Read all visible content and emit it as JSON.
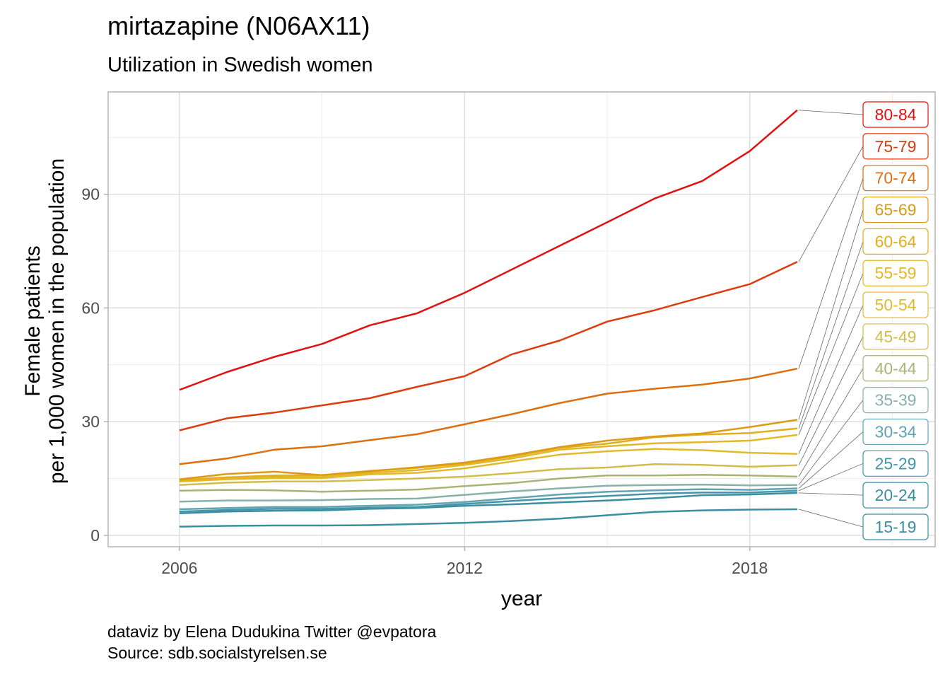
{
  "chart_data": {
    "type": "line",
    "title": "mirtazapine (N06AX11)",
    "subtitle": "Utilization in Swedish women",
    "xlabel": "year",
    "ylabel": [
      "Female patients",
      "per 1,000 women in the population"
    ],
    "caption": [
      "dataviz by Elena Dudukina Twitter @evpatora",
      "Source: sdb.socialstyrelsen.se"
    ],
    "xlim": [
      2004.5,
      2021.9
    ],
    "ylim": [
      -3,
      117
    ],
    "x_ticks": [
      2006,
      2012,
      2018
    ],
    "y_ticks": [
      0,
      30,
      60,
      90
    ],
    "grid": true,
    "legend": "labels at right end of lines",
    "x": [
      2006,
      2007,
      2008,
      2009,
      2010,
      2011,
      2012,
      2013,
      2014,
      2015,
      2016,
      2017,
      2018,
      2019
    ],
    "series": [
      {
        "name": "15-19",
        "color": "#3a8ea2",
        "values": [
          2.3,
          2.5,
          2.6,
          2.6,
          2.7,
          3.0,
          3.3,
          3.8,
          4.4,
          5.3,
          6.2,
          6.6,
          6.8,
          6.9
        ]
      },
      {
        "name": "20-24",
        "color": "#3a8ea2",
        "values": [
          5.8,
          6.3,
          6.5,
          6.6,
          7.0,
          7.2,
          7.8,
          8.2,
          8.7,
          9.2,
          9.8,
          10.6,
          10.8,
          11.2
        ]
      },
      {
        "name": "25-29",
        "color": "#4595a8",
        "values": [
          6.3,
          6.7,
          7.0,
          7.0,
          7.3,
          7.5,
          8.3,
          9.1,
          9.8,
          10.4,
          11.0,
          11.3,
          11.3,
          11.8
        ]
      },
      {
        "name": "30-34",
        "color": "#62a3b3",
        "values": [
          6.9,
          7.2,
          7.5,
          7.5,
          7.8,
          8.1,
          8.8,
          9.8,
          10.8,
          11.5,
          11.9,
          12.2,
          12.0,
          12.4
        ]
      },
      {
        "name": "35-39",
        "color": "#88b1a8",
        "values": [
          8.9,
          9.2,
          9.2,
          9.3,
          9.6,
          9.7,
          10.7,
          11.6,
          12.4,
          13.1,
          13.3,
          13.4,
          13.2,
          13.3
        ]
      },
      {
        "name": "40-44",
        "color": "#a8b474",
        "values": [
          11.8,
          12.0,
          11.9,
          11.5,
          11.8,
          12.1,
          13.0,
          13.8,
          15.0,
          15.8,
          15.8,
          16.0,
          15.8,
          15.5
        ]
      },
      {
        "name": "45-49",
        "color": "#d0bd4a",
        "values": [
          13.3,
          13.9,
          14.2,
          14.2,
          14.6,
          15.0,
          15.5,
          16.4,
          17.5,
          17.9,
          18.8,
          18.6,
          18.1,
          18.5
        ]
      },
      {
        "name": "50-54",
        "color": "#e1ba2c",
        "values": [
          14.2,
          14.8,
          15.1,
          15.1,
          16.1,
          16.5,
          17.7,
          19.5,
          21.3,
          22.2,
          22.8,
          22.5,
          21.8,
          21.5
        ]
      },
      {
        "name": "55-59",
        "color": "#e3b828",
        "values": [
          14.4,
          15.0,
          15.4,
          15.4,
          16.5,
          17.2,
          18.6,
          20.3,
          22.6,
          23.5,
          24.3,
          24.6,
          25.0,
          26.5
        ]
      },
      {
        "name": "60-64",
        "color": "#e2ae1e",
        "values": [
          14.6,
          15.3,
          15.8,
          15.9,
          17.0,
          17.8,
          19.0,
          20.8,
          23.1,
          24.2,
          25.9,
          26.6,
          27.0,
          28.2
        ]
      },
      {
        "name": "65-69",
        "color": "#dd9a15",
        "values": [
          14.8,
          16.2,
          16.8,
          15.9,
          16.9,
          18.0,
          19.2,
          21.1,
          23.3,
          25.0,
          26.1,
          26.9,
          28.6,
          30.5
        ]
      },
      {
        "name": "70-74",
        "color": "#dc6f10",
        "values": [
          18.8,
          20.3,
          22.6,
          23.5,
          25.1,
          26.7,
          29.3,
          32.0,
          34.9,
          37.4,
          38.7,
          39.8,
          41.4,
          44.0
        ]
      },
      {
        "name": "75-79",
        "color": "#dc3c10",
        "values": [
          27.7,
          30.9,
          32.4,
          34.3,
          36.2,
          39.2,
          42.0,
          47.8,
          51.4,
          56.4,
          59.4,
          62.9,
          66.3,
          72.2
        ]
      },
      {
        "name": "80-84",
        "color": "#e0110f",
        "values": [
          38.4,
          43.1,
          47.1,
          50.5,
          55.4,
          58.6,
          64.0,
          70.2,
          76.4,
          82.6,
          88.9,
          93.5,
          101.4,
          112.2
        ]
      }
    ]
  }
}
